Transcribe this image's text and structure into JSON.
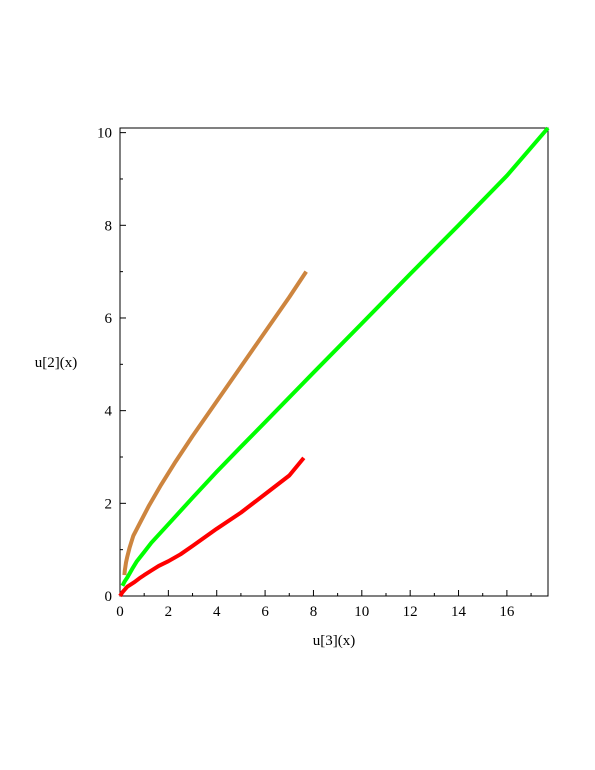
{
  "chart_data": {
    "type": "line",
    "xlabel": "u[3](x)",
    "ylabel": "u[2](x)",
    "xlim": [
      0,
      17.7
    ],
    "ylim": [
      0,
      10.1
    ],
    "x_ticks": [
      0,
      2,
      4,
      6,
      8,
      10,
      12,
      14,
      16
    ],
    "y_ticks": [
      0,
      2,
      4,
      6,
      8,
      10
    ],
    "grid": false,
    "legend": "none",
    "series": [
      {
        "color": "#cd853f",
        "x": [
          0.18,
          0.2,
          0.22,
          0.25,
          0.3,
          0.4,
          0.55,
          0.8,
          1.2,
          1.7,
          2.3,
          3.0,
          4.0,
          5.0,
          6.0,
          7.0,
          7.7
        ],
        "y": [
          0.45,
          0.55,
          0.62,
          0.72,
          0.85,
          1.05,
          1.3,
          1.55,
          1.95,
          2.4,
          2.9,
          3.45,
          4.2,
          4.95,
          5.7,
          6.45,
          7.0
        ]
      },
      {
        "color": "#00ff00",
        "x": [
          0.1,
          0.2,
          0.3,
          0.5,
          0.7,
          1.0,
          1.3,
          2.0,
          3.0,
          4.0,
          5.0,
          6.0,
          8.0,
          10.0,
          12.0,
          14.0,
          16.0,
          17.7
        ],
        "y": [
          0.22,
          0.32,
          0.4,
          0.58,
          0.75,
          0.95,
          1.15,
          1.55,
          2.12,
          2.68,
          3.22,
          3.75,
          4.82,
          5.88,
          6.95,
          8.0,
          9.07,
          10.1
        ]
      },
      {
        "color": "#ff0000",
        "x": [
          0.0,
          0.1,
          0.3,
          0.6,
          0.8,
          1.0,
          1.3,
          1.6,
          2.0,
          2.5,
          3.0,
          4.0,
          5.0,
          6.0,
          7.0,
          7.6
        ],
        "y": [
          0.0,
          0.08,
          0.2,
          0.3,
          0.38,
          0.45,
          0.55,
          0.65,
          0.75,
          0.9,
          1.08,
          1.45,
          1.8,
          2.2,
          2.6,
          2.98
        ]
      }
    ]
  }
}
